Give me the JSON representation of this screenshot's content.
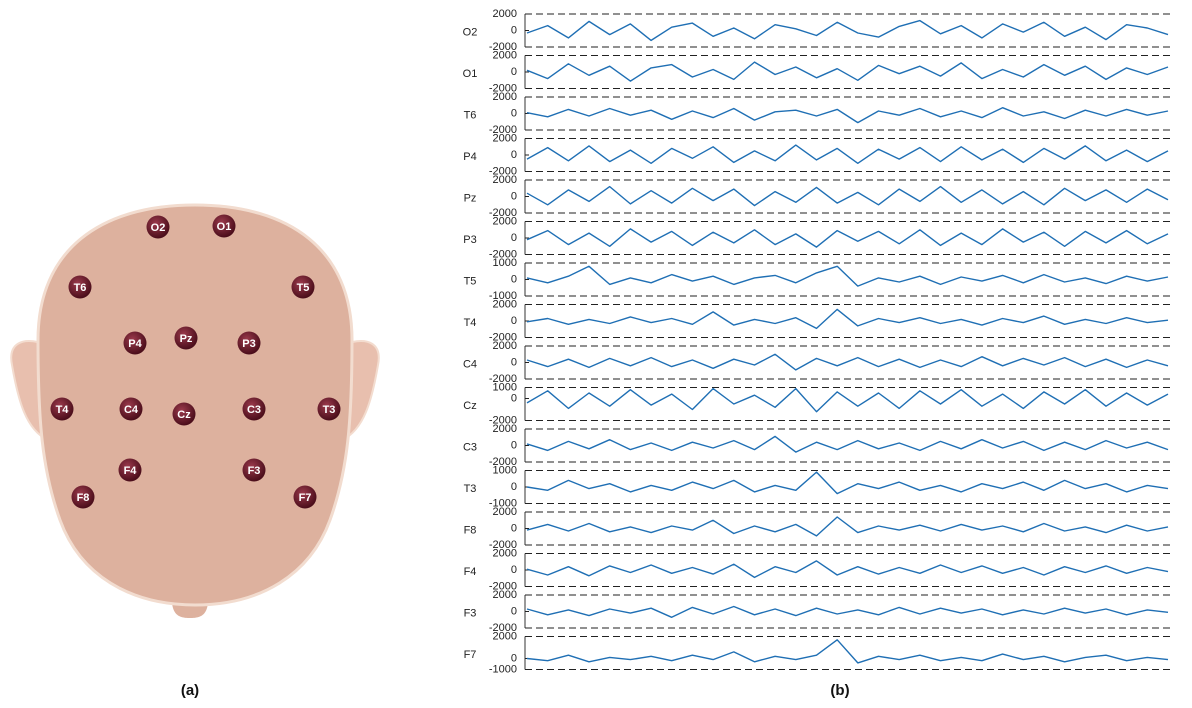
{
  "head": {
    "electrodes": [
      {
        "label": "O2"
      },
      {
        "label": "O1"
      },
      {
        "label": "T6"
      },
      {
        "label": "T5"
      },
      {
        "label": "P4"
      },
      {
        "label": "Pz"
      },
      {
        "label": "P3"
      },
      {
        "label": "T4"
      },
      {
        "label": "C4"
      },
      {
        "label": "Cz"
      },
      {
        "label": "C3"
      },
      {
        "label": "T3"
      },
      {
        "label": "F4"
      },
      {
        "label": "F3"
      },
      {
        "label": "F8"
      },
      {
        "label": "F7"
      }
    ]
  },
  "panel_labels": [
    "(a)",
    "(b)"
  ],
  "eeg": {
    "channels": [
      {
        "name": "O2",
        "ylim": [
          -2000,
          2000
        ],
        "yticks": [
          2000,
          0,
          -2000
        ],
        "values": [
          -300,
          600,
          -900,
          1100,
          -500,
          800,
          -1200,
          400,
          900,
          -700,
          300,
          -1000,
          700,
          200,
          -600,
          1000,
          -300,
          -800,
          500,
          1200,
          -400,
          600,
          -900,
          800,
          -200,
          1000,
          -700,
          400,
          -1100,
          700,
          300,
          -500
        ]
      },
      {
        "name": "O1",
        "ylim": [
          -2000,
          2000
        ],
        "yticks": [
          2000,
          0,
          -2000
        ],
        "values": [
          200,
          -800,
          1000,
          -400,
          700,
          -1100,
          500,
          900,
          -600,
          300,
          -900,
          1200,
          -300,
          600,
          -700,
          400,
          -1000,
          800,
          -200,
          700,
          -500,
          1100,
          -800,
          300,
          -600,
          900,
          -400,
          700,
          -900,
          500,
          -300,
          600
        ]
      },
      {
        "name": "T6",
        "ylim": [
          -2000,
          2000
        ],
        "yticks": [
          2000,
          0,
          -2000
        ],
        "values": [
          100,
          -400,
          500,
          -300,
          600,
          -200,
          400,
          -700,
          300,
          -500,
          600,
          -800,
          200,
          400,
          -300,
          500,
          -1100,
          300,
          -200,
          600,
          -400,
          300,
          -500,
          700,
          -300,
          200,
          -600,
          400,
          -300,
          500,
          -200,
          300
        ]
      },
      {
        "name": "P4",
        "ylim": [
          -2000,
          2000
        ],
        "yticks": [
          2000,
          0,
          -2000
        ],
        "values": [
          -500,
          900,
          -700,
          1100,
          -800,
          600,
          -1000,
          800,
          -400,
          1000,
          -900,
          500,
          -700,
          1200,
          -600,
          800,
          -1000,
          700,
          -500,
          900,
          -800,
          1000,
          -600,
          700,
          -900,
          800,
          -500,
          1100,
          -700,
          600,
          -800,
          500
        ]
      },
      {
        "name": "Pz",
        "ylim": [
          -2000,
          2000
        ],
        "yticks": [
          2000,
          0,
          -2000
        ],
        "values": [
          400,
          -1000,
          800,
          -600,
          1200,
          -900,
          700,
          -800,
          1000,
          -500,
          900,
          -1100,
          600,
          -700,
          1100,
          -800,
          500,
          -1000,
          900,
          -600,
          1200,
          -700,
          800,
          -900,
          600,
          -1000,
          1000,
          -500,
          800,
          -700,
          900,
          -400
        ]
      },
      {
        "name": "P3",
        "ylim": [
          -2000,
          2000
        ],
        "yticks": [
          2000,
          0,
          -2000
        ],
        "values": [
          -200,
          900,
          -800,
          600,
          -1000,
          1100,
          -500,
          800,
          -900,
          700,
          -600,
          1000,
          -800,
          500,
          -1100,
          900,
          -400,
          800,
          -700,
          1000,
          -900,
          600,
          -800,
          1100,
          -500,
          700,
          -1000,
          800,
          -600,
          900,
          -700,
          500
        ]
      },
      {
        "name": "T5",
        "ylim": [
          -1000,
          1000
        ],
        "yticks": [
          1000,
          0,
          -1000
        ],
        "values": [
          100,
          -200,
          200,
          800,
          -300,
          100,
          -200,
          300,
          -100,
          200,
          -300,
          100,
          250,
          -200,
          400,
          800,
          -400,
          100,
          -150,
          200,
          -300,
          150,
          -100,
          250,
          -200,
          300,
          -150,
          100,
          -250,
          200,
          -100,
          150
        ]
      },
      {
        "name": "T4",
        "ylim": [
          -2000,
          2000
        ],
        "yticks": [
          2000,
          0,
          -2000
        ],
        "values": [
          -100,
          300,
          -400,
          200,
          -300,
          500,
          -200,
          300,
          -400,
          1100,
          -500,
          200,
          -300,
          400,
          -900,
          1400,
          -600,
          300,
          -200,
          400,
          -300,
          200,
          -500,
          300,
          -200,
          600,
          -400,
          200,
          -300,
          400,
          -200,
          100
        ]
      },
      {
        "name": "C4",
        "ylim": [
          -2000,
          2000
        ],
        "yticks": [
          2000,
          0,
          -2000
        ],
        "values": [
          300,
          -500,
          400,
          -600,
          500,
          -400,
          600,
          -500,
          300,
          -700,
          400,
          -300,
          1000,
          -900,
          500,
          -400,
          600,
          -500,
          400,
          -600,
          300,
          -500,
          700,
          -400,
          500,
          -300,
          600,
          -500,
          400,
          -600,
          300,
          -400
        ]
      },
      {
        "name": "Cz",
        "ylim": [
          -2000,
          1000
        ],
        "yticks": [
          1000,
          0,
          -2000
        ],
        "values": [
          -400,
          700,
          -900,
          500,
          -700,
          800,
          -600,
          400,
          -1000,
          900,
          -500,
          300,
          -800,
          900,
          -1200,
          600,
          -700,
          500,
          -900,
          700,
          -500,
          800,
          -700,
          400,
          -900,
          600,
          -500,
          800,
          -700,
          500,
          -600,
          400
        ]
      },
      {
        "name": "C3",
        "ylim": [
          -2000,
          2000
        ],
        "yticks": [
          2000,
          0,
          -2000
        ],
        "values": [
          200,
          -600,
          500,
          -400,
          700,
          -500,
          300,
          -600,
          400,
          -300,
          600,
          -500,
          1100,
          -800,
          400,
          -500,
          600,
          -400,
          300,
          -600,
          500,
          -400,
          700,
          -300,
          500,
          -600,
          400,
          -500,
          600,
          -300,
          400,
          -500
        ]
      },
      {
        "name": "T3",
        "ylim": [
          -1000,
          1000
        ],
        "yticks": [
          1000,
          0,
          -1000
        ],
        "values": [
          0,
          -200,
          400,
          -100,
          200,
          -300,
          100,
          -200,
          300,
          -100,
          400,
          -300,
          100,
          -200,
          900,
          -400,
          200,
          -100,
          300,
          -200,
          100,
          -300,
          200,
          -100,
          300,
          -200,
          400,
          -100,
          200,
          -300,
          100,
          -100
        ]
      },
      {
        "name": "F8",
        "ylim": [
          -2000,
          2000
        ],
        "yticks": [
          2000,
          0,
          -2000
        ],
        "values": [
          -200,
          500,
          -300,
          600,
          -400,
          200,
          -500,
          300,
          -200,
          1000,
          -600,
          300,
          -400,
          500,
          -900,
          1400,
          -500,
          300,
          -200,
          400,
          -300,
          500,
          -200,
          300,
          -400,
          600,
          -300,
          200,
          -500,
          400,
          -300,
          200
        ]
      },
      {
        "name": "F4",
        "ylim": [
          -2000,
          2000
        ],
        "yticks": [
          2000,
          0,
          -2000
        ],
        "values": [
          100,
          -600,
          400,
          -700,
          500,
          -300,
          600,
          -400,
          300,
          -500,
          700,
          -900,
          400,
          -300,
          1100,
          -600,
          400,
          -500,
          300,
          -400,
          600,
          -300,
          500,
          -400,
          300,
          -600,
          400,
          -300,
          500,
          -400,
          300,
          -200
        ]
      },
      {
        "name": "F3",
        "ylim": [
          -2000,
          2000
        ],
        "yticks": [
          2000,
          0,
          -2000
        ],
        "values": [
          300,
          -400,
          200,
          -500,
          300,
          -200,
          400,
          -700,
          500,
          -300,
          600,
          -400,
          300,
          -500,
          400,
          -300,
          200,
          -400,
          500,
          -300,
          400,
          -200,
          300,
          -400,
          200,
          -300,
          400,
          -200,
          300,
          -400,
          200,
          -100
        ]
      },
      {
        "name": "F7",
        "ylim": [
          -1000,
          2000
        ],
        "yticks": [
          2000,
          0,
          -1000
        ],
        "values": [
          0,
          -200,
          300,
          -300,
          100,
          -100,
          200,
          -200,
          300,
          -100,
          600,
          -300,
          200,
          -100,
          300,
          1700,
          -400,
          200,
          -100,
          300,
          -200,
          100,
          -200,
          400,
          -100,
          200,
          -300,
          100,
          300,
          -200,
          100,
          -100
        ]
      }
    ]
  }
}
